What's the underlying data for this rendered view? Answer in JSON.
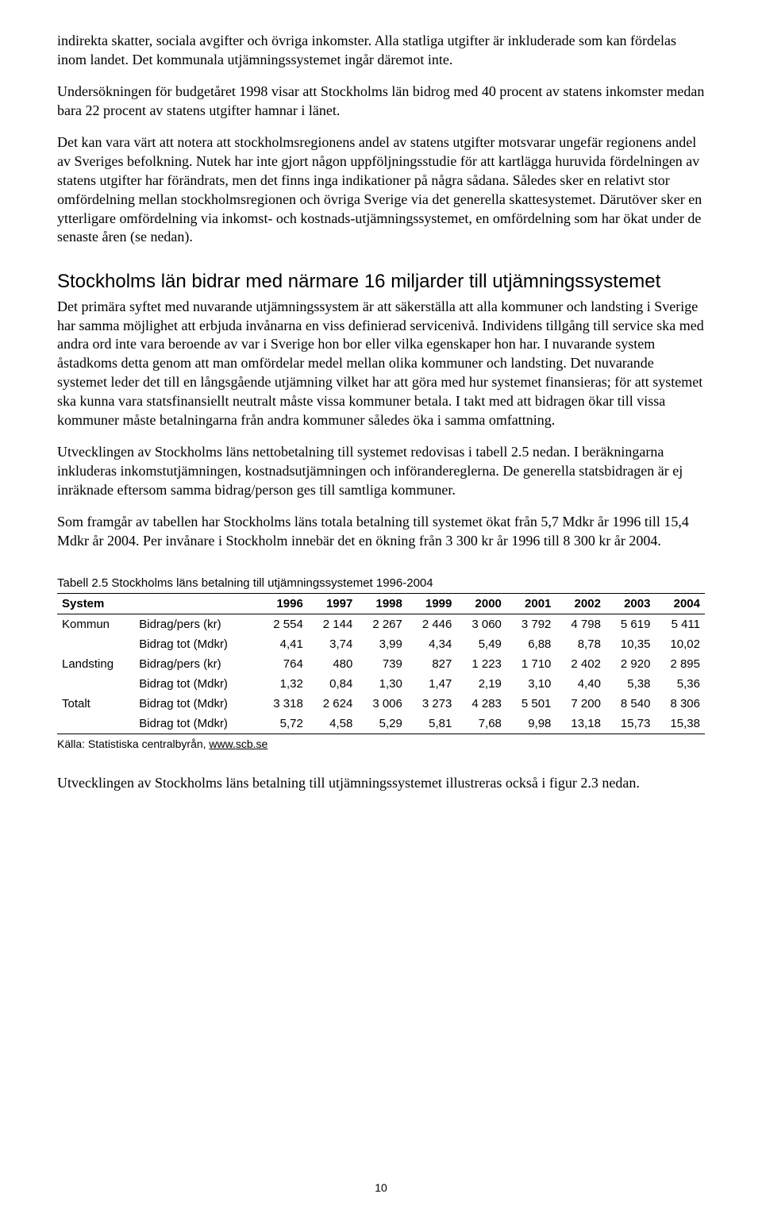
{
  "paragraphs": {
    "p1": "indirekta skatter, sociala avgifter och övriga inkomster. Alla statliga utgifter är inkluderade som kan fördelas inom landet. Det kommunala utjämningssystemet ingår däremot inte.",
    "p2": "Undersökningen för budgetåret 1998 visar att Stockholms län bidrog med 40 procent av statens inkomster medan bara 22 procent av statens utgifter hamnar i länet.",
    "p3": "Det kan vara värt att notera att stockholmsregionens andel av statens utgifter motsvarar ungefär regionens andel av Sveriges befolkning. Nutek har inte gjort någon uppföljningsstudie för att kartlägga huruvida fördelningen av statens utgifter har förändrats, men det finns inga indikationer på några sådana. Således sker en relativt stor omfördelning mellan stockholmsregionen och övriga Sverige via det generella skattesystemet. Därutöver sker en ytterligare omfördelning via inkomst- och kostnads-utjämningssystemet, en omfördelning som har ökat under de senaste åren (se nedan).",
    "p4": "Det primära syftet med nuvarande utjämningssystem är att säkerställa att alla kommuner och landsting i Sverige har samma möjlighet att erbjuda invånarna en viss definierad servicenivå. Individens tillgång till service ska med andra ord inte vara beroende av var i Sverige hon bor eller vilka egenskaper hon har. I nuvarande system åstadkoms detta genom att man omfördelar medel mellan olika kommuner och landsting. Det nuvarande systemet leder det till en långsgående utjämning vilket har att göra med hur systemet finansieras; för att systemet ska kunna vara statsfinansiellt neutralt måste vissa kommuner betala. I takt med att bidragen ökar till vissa kommuner måste betalningarna från andra kommuner således öka i samma omfattning.",
    "p5": "Utvecklingen av Stockholms läns nettobetalning till systemet redovisas i tabell 2.5 nedan. I beräkningarna inkluderas inkomstutjämningen, kostnadsutjämningen och införandereglerna. De generella statsbidragen är ej inräknade eftersom samma bidrag/person ges till samtliga kommuner.",
    "p6": "Som framgår av tabellen har Stockholms läns totala betalning till systemet ökat från 5,7 Mdkr år 1996 till 15,4 Mdkr år 2004. Per invånare i Stockholm innebär det en ökning från 3 300 kr år 1996 till 8 300 kr år 2004.",
    "p7": "Utvecklingen av Stockholms läns betalning till utjämningssystemet illustreras också i figur 2.3 nedan."
  },
  "section_heading": "Stockholms län bidrar med närmare 16 miljarder till utjämningssystemet",
  "table": {
    "caption": "Tabell 2.5 Stockholms läns betalning till utjämningssystemet 1996-2004",
    "header": {
      "col1": "System",
      "col2": "",
      "years": [
        "1996",
        "1997",
        "1998",
        "1999",
        "2000",
        "2001",
        "2002",
        "2003",
        "2004"
      ]
    },
    "rows": [
      {
        "group": "Kommun",
        "metric": "Bidrag/pers (kr)",
        "values": [
          "2 554",
          "2 144",
          "2 267",
          "2 446",
          "3 060",
          "3 792",
          "4 798",
          "5 619",
          "5 411"
        ]
      },
      {
        "group": "",
        "metric": "Bidrag tot (Mdkr)",
        "values": [
          "4,41",
          "3,74",
          "3,99",
          "4,34",
          "5,49",
          "6,88",
          "8,78",
          "10,35",
          "10,02"
        ]
      },
      {
        "group": "Landsting",
        "metric": "Bidrag/pers (kr)",
        "values": [
          "764",
          "480",
          "739",
          "827",
          "1 223",
          "1 710",
          "2 402",
          "2 920",
          "2 895"
        ]
      },
      {
        "group": "",
        "metric": "Bidrag tot (Mdkr)",
        "values": [
          "1,32",
          "0,84",
          "1,30",
          "1,47",
          "2,19",
          "3,10",
          "4,40",
          "5,38",
          "5,36"
        ]
      },
      {
        "group": "Totalt",
        "metric": "Bidrag tot (Mdkr)",
        "values": [
          "3 318",
          "2 624",
          "3 006",
          "3 273",
          "4 283",
          "5 501",
          "7 200",
          "8 540",
          "8 306"
        ]
      },
      {
        "group": "",
        "metric": "Bidrag tot (Mdkr)",
        "values": [
          "5,72",
          "4,58",
          "5,29",
          "5,81",
          "7,68",
          "9,98",
          "13,18",
          "15,73",
          "15,38"
        ]
      }
    ],
    "font_family": "Arial, Helvetica, sans-serif",
    "font_size_pt": 11,
    "border_color": "#000000",
    "background_color": "#ffffff"
  },
  "source": {
    "prefix": "Källa: Statistiska centralbyrån, ",
    "link": "www.scb.se"
  },
  "page_number": "10",
  "colors": {
    "text": "#000000",
    "background": "#ffffff"
  }
}
